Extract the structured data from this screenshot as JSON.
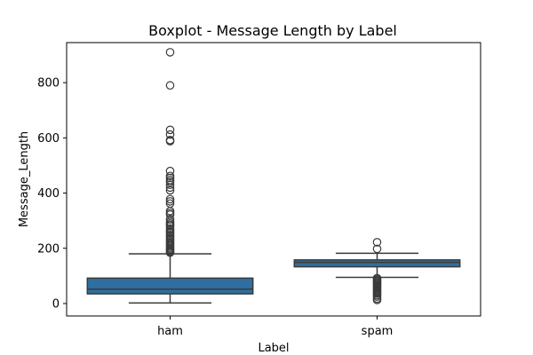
{
  "chart_data": {
    "type": "boxplot",
    "title": "Boxplot - Message Length by Label",
    "xlabel": "Label",
    "ylabel": "Message_Length",
    "ylim": [
      -45,
      945
    ],
    "yticks": [
      0,
      200,
      400,
      600,
      800
    ],
    "grid": false,
    "categories": [
      "ham",
      "spam"
    ],
    "box_color": "#2f6f9f",
    "line_color": "#3a3a3a",
    "boxes": [
      {
        "category": "ham",
        "whisker_low": 2,
        "q1": 35,
        "median": 52,
        "q3": 92,
        "whisker_high": 180,
        "outliers": [
          910,
          790,
          629,
          612,
          592,
          588,
          480,
          462,
          455,
          447,
          440,
          430,
          420,
          410,
          378,
          370,
          362,
          335,
          328,
          322,
          305,
          296,
          290,
          285,
          280,
          272,
          266,
          260,
          255,
          248,
          243,
          237,
          232,
          226,
          220,
          215,
          210,
          205,
          200,
          196,
          192,
          188,
          184
        ]
      },
      {
        "category": "spam",
        "whisker_low": 95,
        "q1": 133,
        "median": 149,
        "q3": 158,
        "whisker_high": 182,
        "outliers": [
          222,
          198,
          92,
          88,
          84,
          80,
          76,
          72,
          68,
          64,
          60,
          56,
          52,
          48,
          44,
          40,
          36,
          30,
          25,
          18,
          13
        ]
      }
    ]
  }
}
